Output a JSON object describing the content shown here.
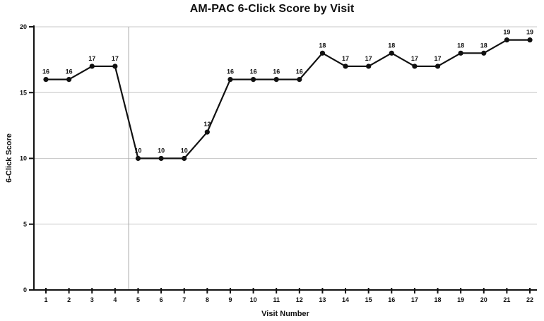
{
  "chart_data": {
    "type": "line",
    "title": "AM-PAC 6-Click Score by Visit",
    "xlabel": "Visit Number",
    "ylabel": "6-Click Score",
    "x": [
      1,
      2,
      3,
      4,
      5,
      6,
      7,
      8,
      9,
      10,
      11,
      12,
      13,
      14,
      15,
      16,
      17,
      18,
      19,
      20,
      21,
      22
    ],
    "values": [
      16,
      16,
      17,
      17,
      10,
      10,
      10,
      12,
      16,
      16,
      16,
      16,
      18,
      17,
      17,
      18,
      17,
      17,
      18,
      18,
      19,
      19
    ],
    "point_labels_shown": true,
    "ylim": [
      0,
      20
    ],
    "yticks": [
      0,
      5,
      10,
      15,
      20
    ],
    "grid": "horizontal-at-yticks-above-zero",
    "legend": "none",
    "vertical_reference_line_x": 4.59,
    "colors": {
      "line": "#111111",
      "marker": "#111111",
      "grid": "#c9c9c9",
      "reference_line": "#a8a8a8",
      "axis": "#111111",
      "text": "#111111",
      "background": "#ffffff"
    }
  }
}
